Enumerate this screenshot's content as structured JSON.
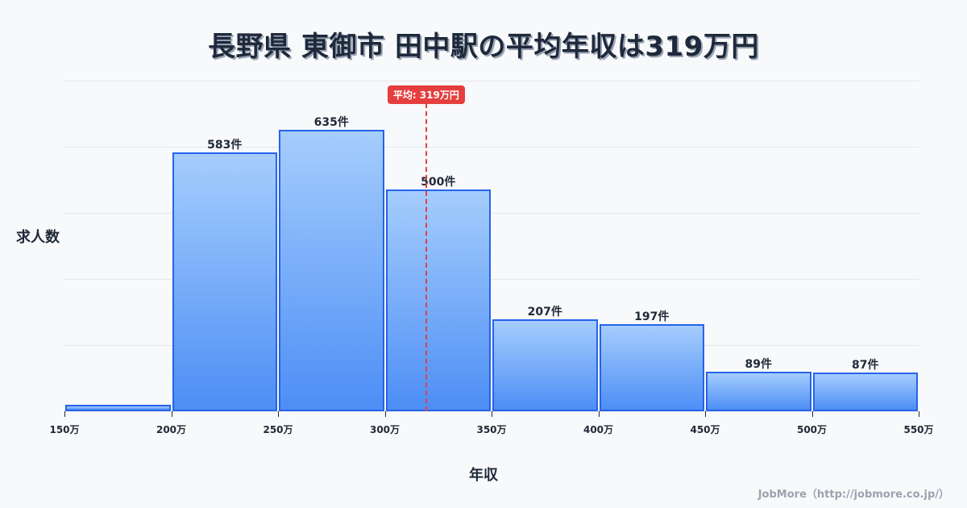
{
  "title": "長野県 東御市 田中駅の平均年収は319万円",
  "ylabel": "求人数",
  "xlabel": "年収",
  "footer": "JobMore（http://jobmore.co.jp/）",
  "average": {
    "label": "平均: 319万円",
    "value": 319
  },
  "colors": {
    "bar_border": "#2563eb",
    "bar_top": "#a5cdfd",
    "bar_bottom": "#4d8ef5",
    "avg_line": "#e53e3e"
  },
  "chart_data": {
    "type": "bar",
    "title": "長野県 東御市 田中駅の平均年収は319万円",
    "xlabel": "年収",
    "ylabel": "求人数",
    "bins": [
      [
        150,
        200
      ],
      [
        200,
        250
      ],
      [
        250,
        300
      ],
      [
        300,
        350
      ],
      [
        350,
        400
      ],
      [
        400,
        450
      ],
      [
        450,
        500
      ],
      [
        500,
        550
      ]
    ],
    "categories": [
      "150-200万",
      "200-250万",
      "250-300万",
      "300-350万",
      "350-400万",
      "400-450万",
      "450-500万",
      "500-550万"
    ],
    "values": [
      15,
      583,
      635,
      500,
      207,
      197,
      89,
      87
    ],
    "value_labels": [
      "",
      "583件",
      "635件",
      "500件",
      "207件",
      "197件",
      "89件",
      "87件"
    ],
    "x_ticks": [
      "150万",
      "200万",
      "250万",
      "300万",
      "350万",
      "400万",
      "450万",
      "500万",
      "550万"
    ],
    "ylim": [
      0,
      745
    ],
    "grid": true,
    "annotations": [
      {
        "type": "vline",
        "x": 319,
        "label": "平均: 319万円"
      }
    ]
  }
}
